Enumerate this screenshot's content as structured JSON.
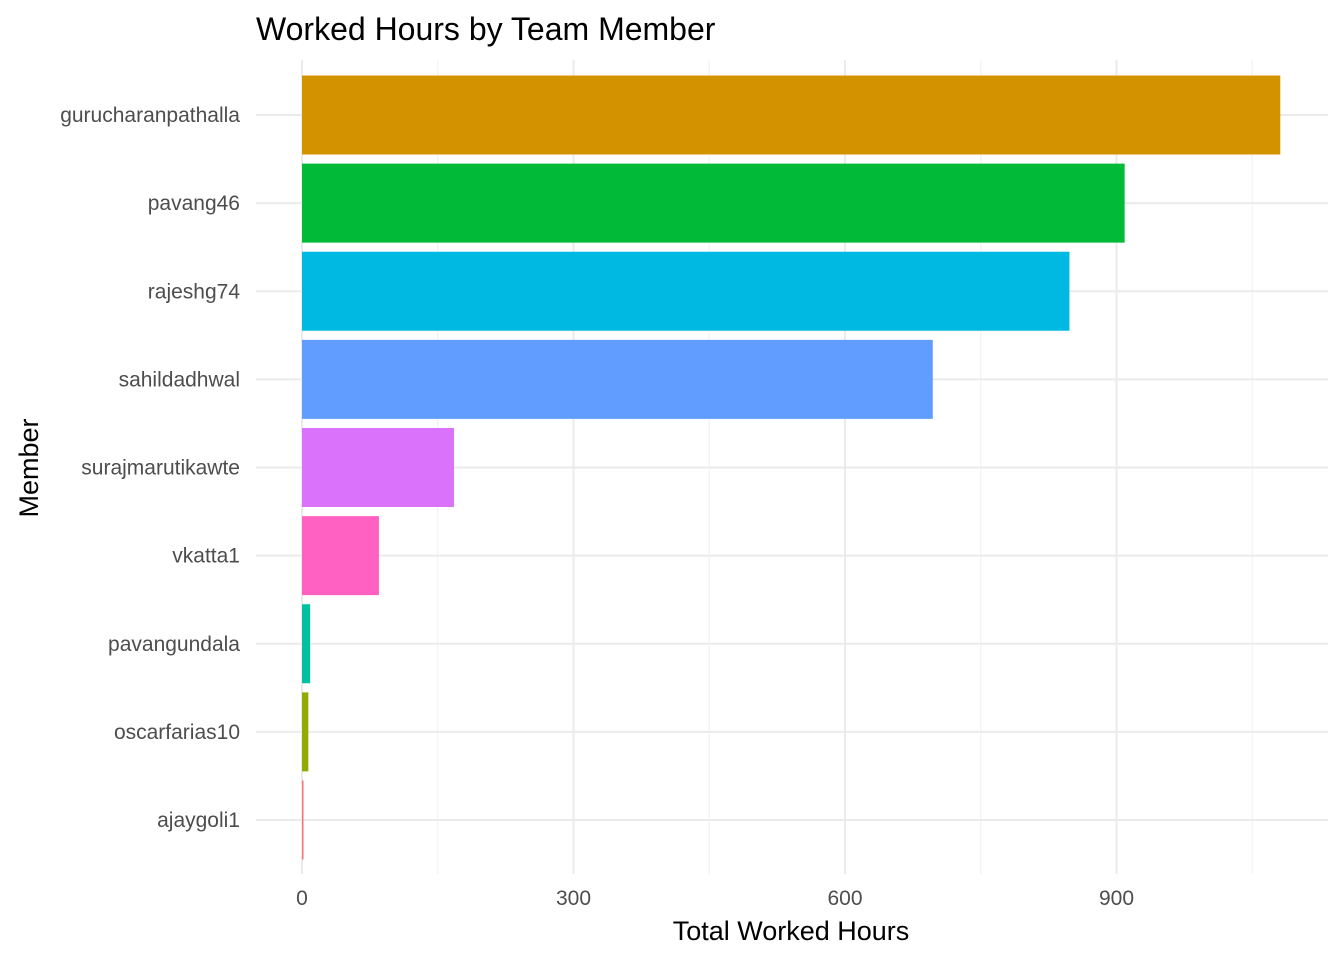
{
  "chart_data": {
    "type": "bar",
    "orientation": "horizontal",
    "title": "Worked Hours by Team Member",
    "xlabel": "Total Worked Hours",
    "ylabel": "Member",
    "xlim": [
      0,
      1080
    ],
    "x_ticks": [
      0,
      300,
      600,
      900
    ],
    "x_tick_labels": [
      "0",
      "300",
      "600",
      "900"
    ],
    "grid": true,
    "legend": "none",
    "bars": [
      {
        "name": "gurucharanpathalla",
        "value": 1081,
        "color": "#D39200"
      },
      {
        "name": "pavang46",
        "value": 909,
        "color": "#00BA38"
      },
      {
        "name": "rajeshg74",
        "value": 848,
        "color": "#00B9E3"
      },
      {
        "name": "sahildadhwal",
        "value": 697,
        "color": "#619CFF"
      },
      {
        "name": "surajmarutikawte",
        "value": 168,
        "color": "#DB72FB"
      },
      {
        "name": "vkatta1",
        "value": 85,
        "color": "#FF61C3"
      },
      {
        "name": "pavangundala",
        "value": 9,
        "color": "#00C19F"
      },
      {
        "name": "oscarfarias10",
        "value": 7,
        "color": "#93AA00"
      },
      {
        "name": "ajaygoli1",
        "value": 1.5,
        "color": "#F8766D"
      }
    ]
  }
}
